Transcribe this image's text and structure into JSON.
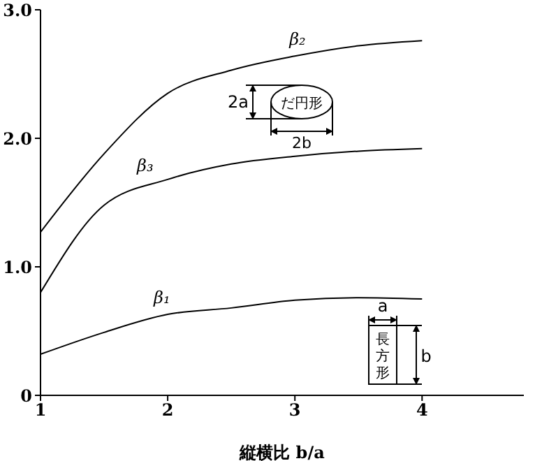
{
  "chart_data": {
    "type": "line",
    "xlabel": "縦横比 b/a",
    "x": [
      1,
      1.5,
      2,
      2.5,
      3,
      3.5,
      4
    ],
    "series": [
      {
        "name": "β₂",
        "color": "#000000",
        "values": [
          1.27,
          1.88,
          2.35,
          2.53,
          2.64,
          2.72,
          2.76
        ]
      },
      {
        "name": "β₃",
        "color": "#000000",
        "values": [
          0.8,
          1.48,
          1.68,
          1.8,
          1.86,
          1.9,
          1.92
        ]
      },
      {
        "name": "β₁",
        "color": "#000000",
        "values": [
          0.32,
          0.49,
          0.63,
          0.68,
          0.74,
          0.76,
          0.75
        ]
      }
    ],
    "xlim": [
      1,
      4.8
    ],
    "xticks": [
      1,
      2,
      3,
      4
    ],
    "ylim": [
      0,
      3
    ],
    "yticks": [
      0,
      {
        "value": 1,
        "label": "1.0"
      },
      {
        "value": 2,
        "label": "2.0"
      },
      {
        "value": 3,
        "label": "3.0"
      }
    ],
    "grid": false,
    "legend": false,
    "marker": "none",
    "line_style": "solid",
    "annotations": [
      "だ円形",
      "2a",
      "2b",
      "長方形",
      "a",
      "b"
    ]
  }
}
